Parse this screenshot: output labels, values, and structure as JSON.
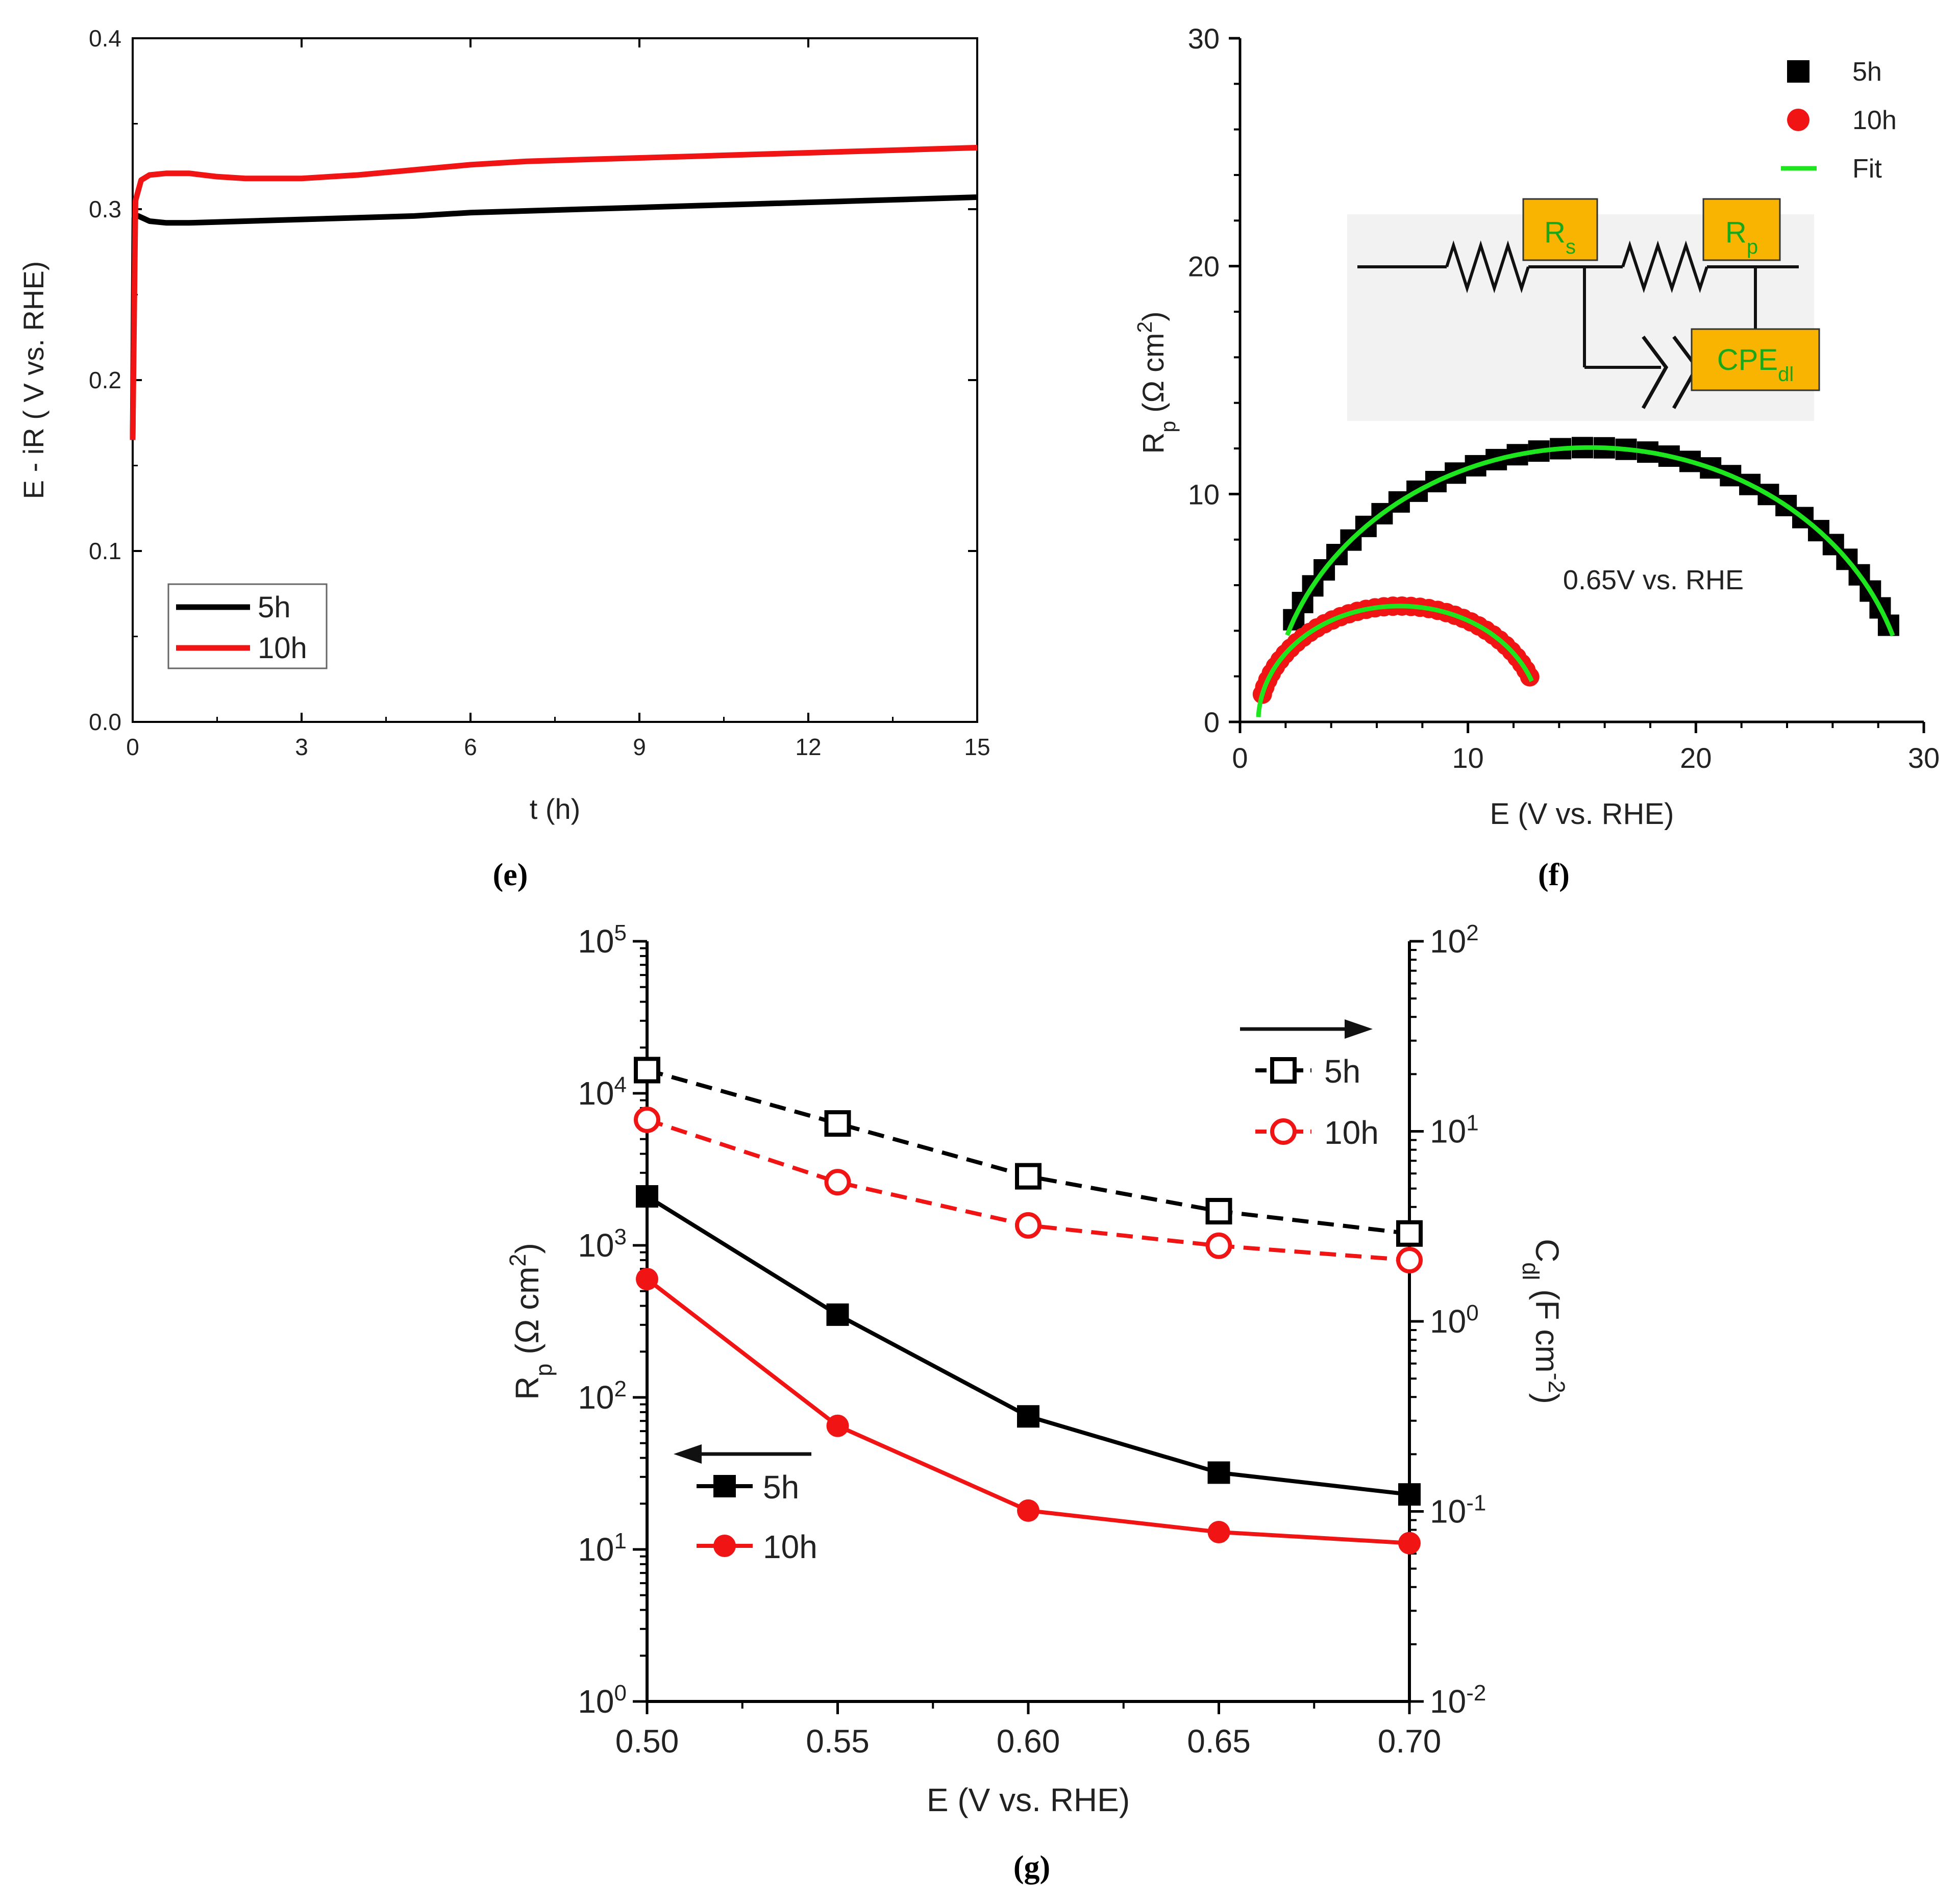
{
  "colors": {
    "black": "#000000",
    "red": "#f01414",
    "green": "#1ee61e",
    "box": "#f8b400",
    "circuit_bg": "#f2f2f2",
    "box_text": "#1aa81a"
  },
  "chart_data": [
    {
      "id": "e",
      "panel_label": "e",
      "type": "line",
      "title": "",
      "xlabel": "t (h)",
      "ylabel": "E - iR ( V vs. RHE)",
      "xlim": [
        0,
        15
      ],
      "ylim": [
        0,
        0.4
      ],
      "xticks": [
        "0",
        "3",
        "6",
        "9",
        "12",
        "15"
      ],
      "yticks": [
        "0.0",
        "0.1",
        "0.2",
        "0.3",
        "0.4"
      ],
      "legend": {
        "position": "bottom-left",
        "entries": [
          "5h",
          "10h"
        ]
      },
      "series": [
        {
          "name": "5h",
          "color": "#000000",
          "x": [
            0.0,
            0.03,
            0.1,
            0.3,
            0.6,
            1.0,
            2.0,
            3.0,
            4.0,
            5.0,
            6.0,
            7.0,
            8.0,
            9.0,
            10.0,
            11.0,
            12.0,
            13.0,
            14.0,
            15.0
          ],
          "y": [
            0.165,
            0.295,
            0.296,
            0.293,
            0.292,
            0.292,
            0.293,
            0.294,
            0.295,
            0.296,
            0.298,
            0.299,
            0.3,
            0.301,
            0.302,
            0.303,
            0.304,
            0.305,
            0.306,
            0.307
          ]
        },
        {
          "name": "10h",
          "color": "#f01414",
          "x": [
            0.0,
            0.05,
            0.15,
            0.3,
            0.6,
            1.0,
            1.5,
            2.0,
            3.0,
            4.0,
            5.0,
            6.0,
            7.0,
            8.0,
            9.0,
            10.0,
            11.0,
            12.0,
            13.0,
            14.0,
            15.0
          ],
          "y": [
            0.165,
            0.305,
            0.317,
            0.32,
            0.321,
            0.321,
            0.319,
            0.318,
            0.318,
            0.32,
            0.323,
            0.326,
            0.328,
            0.329,
            0.33,
            0.331,
            0.332,
            0.333,
            0.334,
            0.335,
            0.336
          ]
        }
      ]
    },
    {
      "id": "f",
      "panel_label": "f",
      "type": "scatter",
      "title": "",
      "xlabel": "E (V vs. RHE)",
      "ylabel": {
        "main": "R",
        "sub": "p",
        "unit": " (Ω cm",
        "sup": "2",
        "close": ")"
      },
      "xlim": [
        0,
        30
      ],
      "ylim": [
        0,
        30
      ],
      "xticks": [
        "0",
        "10",
        "20",
        "30"
      ],
      "yticks": [
        "0",
        "10",
        "20",
        "30"
      ],
      "annotation": "0.65V vs. RHE",
      "circuit": {
        "rs": {
          "main": "R",
          "sub": "s"
        },
        "rp": {
          "main": "R",
          "sub": "p"
        },
        "cpe": {
          "main": "CPE",
          "sub": "dl"
        }
      },
      "legend": {
        "position": "top-right",
        "entries": [
          "5h",
          "10h",
          "Fit"
        ]
      },
      "series": [
        {
          "name": "5h",
          "marker": "square",
          "color": "#000000",
          "arc": {
            "center": 15.35,
            "radius": 14.0,
            "y_scale": 0.86,
            "t_start": 2.76,
            "t_end": 0.36,
            "points": 36
          }
        },
        {
          "name": "10h",
          "marker": "circle",
          "color": "#f01414",
          "arc": {
            "center": 7.0,
            "radius": 6.2,
            "y_scale": 0.82,
            "t_start": 2.9,
            "t_end": 0.4,
            "points": 40
          }
        },
        {
          "name": "Fit",
          "type": "line",
          "color": "#1ee61e",
          "arcs": [
            {
              "center": 15.35,
              "radius": 14.0,
              "y_scale": 0.86,
              "t_start": 2.82,
              "t_end": 0.32
            },
            {
              "center": 7.0,
              "radius": 6.2,
              "y_scale": 0.82,
              "t_start": 3.1,
              "t_end": 0.36
            }
          ]
        }
      ]
    },
    {
      "id": "g",
      "panel_label": "g",
      "type": "line",
      "title": "",
      "xlabel": "E (V vs. RHE)",
      "ylabel_left": {
        "main": "R",
        "sub": "p",
        "unit": " (Ω cm",
        "sup": "2",
        "close": ")"
      },
      "ylabel_right": {
        "main": "C",
        "sub": "dl",
        "unit": " (F cm",
        "sup": "-2",
        "close": ")"
      },
      "x": [
        0.5,
        0.55,
        0.6,
        0.65,
        0.7
      ],
      "xlim": [
        0.5,
        0.7
      ],
      "xticks": [
        "0.50",
        "0.55",
        "0.60",
        "0.65",
        "0.70"
      ],
      "ylim_left": [
        1,
        100000
      ],
      "ylim_right": [
        0.01,
        100
      ],
      "yticks_left": [
        {
          "base": "10",
          "exp": "0"
        },
        {
          "base": "10",
          "exp": "1"
        },
        {
          "base": "10",
          "exp": "2"
        },
        {
          "base": "10",
          "exp": "3"
        },
        {
          "base": "10",
          "exp": "4"
        },
        {
          "base": "10",
          "exp": "5"
        }
      ],
      "yticks_right": [
        {
          "base": "10",
          "exp": "-2"
        },
        {
          "base": "10",
          "exp": "-1"
        },
        {
          "base": "10",
          "exp": "0"
        },
        {
          "base": "10",
          "exp": "1"
        },
        {
          "base": "10",
          "exp": "2"
        }
      ],
      "legend_left": {
        "position": "bottom-left",
        "entries": [
          "5h",
          "10h"
        ]
      },
      "legend_right": {
        "position": "top-right",
        "entries": [
          "5h",
          "10h"
        ]
      },
      "series": [
        {
          "name": "5h",
          "axis": "left",
          "marker": "square-filled",
          "style": "solid",
          "color": "#000000",
          "values": [
            2100,
            350,
            75,
            32,
            23
          ]
        },
        {
          "name": "10h",
          "axis": "left",
          "marker": "circle-filled",
          "style": "solid",
          "color": "#f01414",
          "values": [
            600,
            65,
            18,
            13,
            11
          ]
        },
        {
          "name": "5h",
          "axis": "right",
          "marker": "square-open",
          "style": "dashed",
          "color": "#000000",
          "values": [
            21,
            11,
            5.8,
            3.8,
            2.9
          ]
        },
        {
          "name": "10h",
          "axis": "right",
          "marker": "circle-open",
          "style": "dashed",
          "color": "#f01414",
          "values": [
            11.5,
            5.4,
            3.2,
            2.5,
            2.1
          ]
        }
      ]
    }
  ]
}
